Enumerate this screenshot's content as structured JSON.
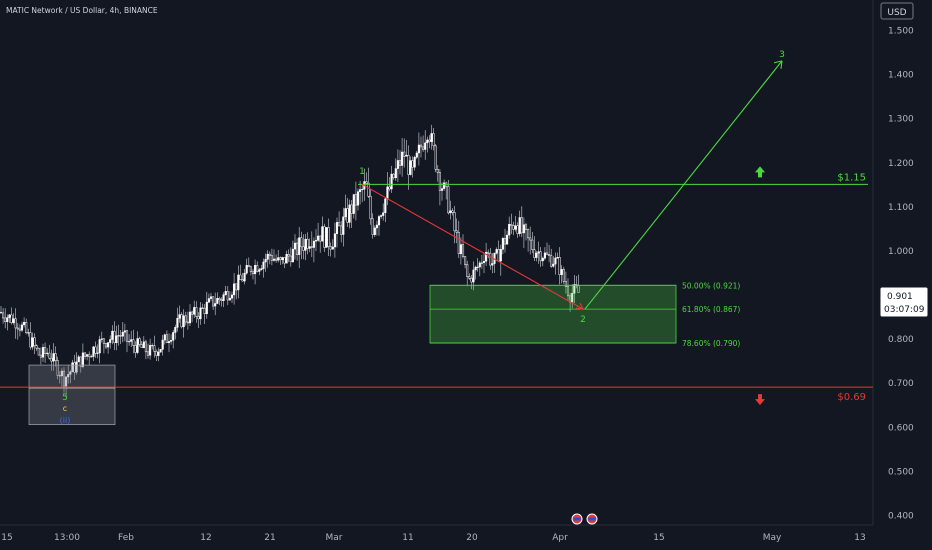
{
  "header": {
    "symbol_title": "MATIC Network / US Dollar, 4h, BINANCE",
    "currency": "USD"
  },
  "price_badge": {
    "price": "0.901",
    "countdown": "03:07:09"
  },
  "chart_data": {
    "type": "candlestick",
    "y_axis": {
      "ticks": [
        "1.500",
        "1.400",
        "1.300",
        "1.200",
        "1.100",
        "1.000",
        "0.900",
        "0.800",
        "0.700",
        "0.600",
        "0.500",
        "0.400"
      ],
      "ylim": [
        0.38,
        1.54
      ]
    },
    "x_axis": {
      "ticks": [
        "15",
        "13:00",
        "Feb",
        "12",
        "21",
        "Mar",
        "11",
        "20",
        "Apr",
        "15",
        "May",
        "13"
      ]
    },
    "price_path": [
      [
        0,
        0.86
      ],
      [
        8,
        0.85
      ],
      [
        16,
        0.84
      ],
      [
        24,
        0.82
      ],
      [
        32,
        0.79
      ],
      [
        40,
        0.76
      ],
      [
        48,
        0.77
      ],
      [
        56,
        0.74
      ],
      [
        64,
        0.71
      ],
      [
        72,
        0.73
      ],
      [
        80,
        0.75
      ],
      [
        90,
        0.77
      ],
      [
        100,
        0.79
      ],
      [
        110,
        0.8
      ],
      [
        120,
        0.81
      ],
      [
        130,
        0.79
      ],
      [
        140,
        0.78
      ],
      [
        150,
        0.77
      ],
      [
        160,
        0.78
      ],
      [
        170,
        0.81
      ],
      [
        180,
        0.84
      ],
      [
        190,
        0.85
      ],
      [
        200,
        0.86
      ],
      [
        210,
        0.88
      ],
      [
        220,
        0.89
      ],
      [
        230,
        0.91
      ],
      [
        240,
        0.93
      ],
      [
        250,
        0.96
      ],
      [
        260,
        0.97
      ],
      [
        270,
        0.99
      ],
      [
        280,
        0.97
      ],
      [
        290,
        0.99
      ],
      [
        300,
        1.01
      ],
      [
        310,
        1.03
      ],
      [
        320,
        1.04
      ],
      [
        330,
        1.02
      ],
      [
        340,
        1.05
      ],
      [
        350,
        1.09
      ],
      [
        358,
        1.12
      ],
      [
        366,
        1.15
      ],
      [
        372,
        1.05
      ],
      [
        380,
        1.09
      ],
      [
        388,
        1.13
      ],
      [
        396,
        1.18
      ],
      [
        404,
        1.22
      ],
      [
        412,
        1.17
      ],
      [
        420,
        1.23
      ],
      [
        428,
        1.28
      ],
      [
        434,
        1.22
      ],
      [
        440,
        1.16
      ],
      [
        448,
        1.11
      ],
      [
        455,
        1.04
      ],
      [
        462,
        0.99
      ],
      [
        468,
        0.93
      ],
      [
        474,
        0.95
      ],
      [
        480,
        0.97
      ],
      [
        486,
        1.0
      ],
      [
        492,
        0.97
      ],
      [
        498,
        0.99
      ],
      [
        504,
        1.02
      ],
      [
        510,
        1.05
      ],
      [
        516,
        1.07
      ],
      [
        522,
        1.04
      ],
      [
        528,
        1.02
      ],
      [
        536,
        1.0
      ],
      [
        544,
        0.99
      ],
      [
        552,
        0.98
      ],
      [
        558,
        0.97
      ],
      [
        564,
        0.93
      ],
      [
        570,
        0.9
      ],
      [
        576,
        0.91
      ],
      [
        580,
        0.901
      ]
    ],
    "levels": [
      {
        "name": "resistance",
        "value": 1.15,
        "label": "$1.15",
        "color": "#4cd93f"
      },
      {
        "name": "support",
        "value": 0.69,
        "label": "$0.69",
        "color": "#e53935"
      }
    ],
    "fib_zone": {
      "levels": [
        {
          "value": 0.921,
          "label": "50.00% (0.921)"
        },
        {
          "value": 0.867,
          "label": "61.80% (0.867)"
        },
        {
          "value": 0.79,
          "label": "78.60% (0.790)"
        }
      ],
      "color": "#4cd93f"
    },
    "wave_labels": [
      {
        "text": "1",
        "color": "#4cd93f"
      },
      {
        "text": "2",
        "color": "#4cd93f"
      },
      {
        "text": "3",
        "color": "#4cd93f"
      },
      {
        "text": "5",
        "color": "#4cd93f"
      },
      {
        "text": "c",
        "color": "#f5d04a"
      },
      {
        "text": "(ii)",
        "color": "#3a6df0"
      }
    ],
    "projection": {
      "from_price": 0.867,
      "to_price": 1.43,
      "color": "#4cd93f"
    },
    "decline": {
      "from_price": 1.15,
      "to_price": 0.867,
      "color": "#e53935"
    }
  }
}
